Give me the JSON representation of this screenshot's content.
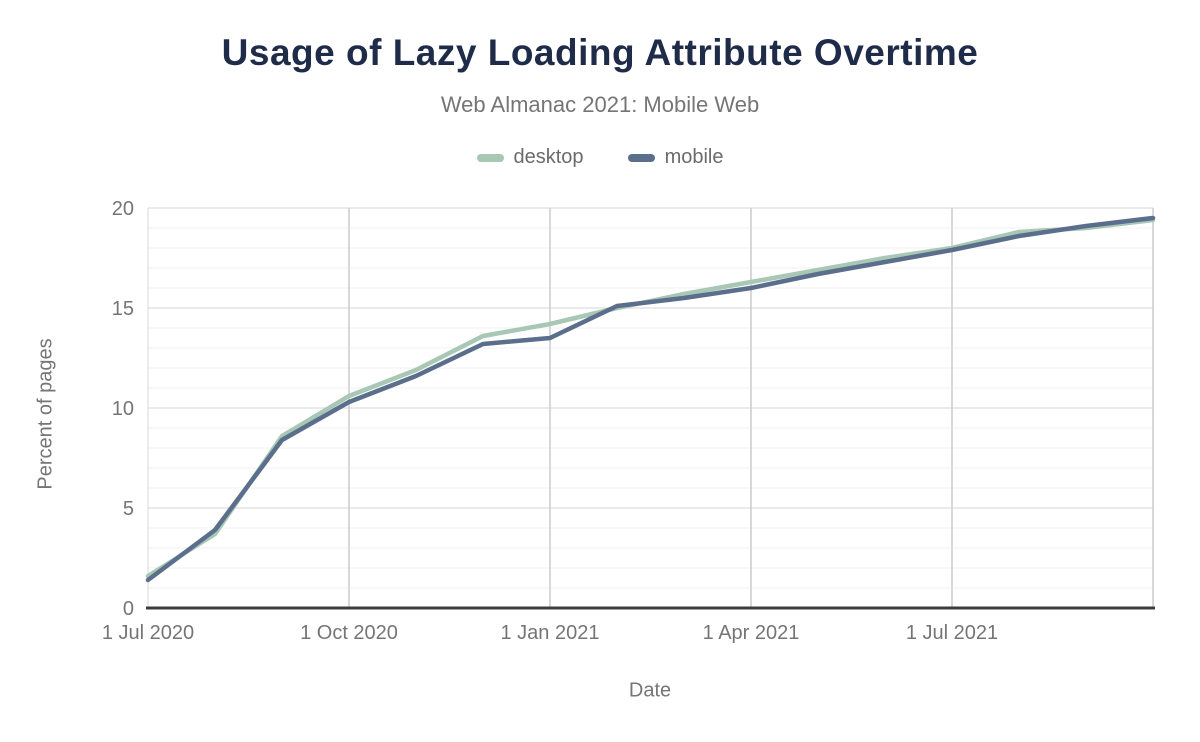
{
  "header": {
    "title": "Usage of Lazy Loading Attribute Overtime",
    "subtitle": "Web Almanac 2021: Mobile Web"
  },
  "legend": {
    "items": [
      {
        "label": "desktop",
        "color": "#a8c7b5"
      },
      {
        "label": "mobile",
        "color": "#5b6e8c"
      }
    ]
  },
  "axes": {
    "y_title": "Percent of pages",
    "x_title": "Date",
    "y_tick_labels": [
      "0",
      "5",
      "10",
      "15",
      "20"
    ],
    "y_tick_values": [
      0,
      5,
      10,
      15,
      20
    ],
    "x_tick_labels": [
      "1 Jul 2020",
      "1 Oct 2020",
      "1 Jan 2021",
      "1 Apr 2021",
      "1 Jul 2021"
    ]
  },
  "colors": {
    "title": "#1e2b49",
    "subtitle": "#757575",
    "tick_text": "#757575",
    "axis_line": "#3c3c3c",
    "y_axis_line": "#d9d9d9",
    "grid_minor": "#f0f0f0",
    "grid_major_h": "#e3e3e3",
    "grid_vertical": "#cccccc",
    "desktop": "#a8c7b5",
    "mobile": "#5b6e8c"
  },
  "chart_data": {
    "type": "line",
    "title": "Usage of Lazy Loading Attribute Overtime",
    "subtitle": "Web Almanac 2021: Mobile Web",
    "xlabel": "Date",
    "ylabel": "Percent of pages",
    "ylim": [
      0,
      20
    ],
    "y_major_step": 5,
    "y_minor_step": 1,
    "grid": "on",
    "legend_position": "top",
    "x": [
      "1 Jul 2020",
      "1 Aug 2020",
      "1 Sep 2020",
      "1 Oct 2020",
      "1 Nov 2020",
      "1 Dec 2020",
      "1 Jan 2021",
      "1 Feb 2021",
      "1 Mar 2021",
      "1 Apr 2021",
      "1 May 2021",
      "1 Jun 2021",
      "1 Jul 2021",
      "1 Aug 2021",
      "1 Sep 2021",
      "1 Oct 2021"
    ],
    "x_tick_indices": [
      0,
      3,
      6,
      9,
      12
    ],
    "x_gridline_indices": [
      3,
      6,
      9,
      12,
      15
    ],
    "series": [
      {
        "name": "desktop",
        "color": "#a8c7b5",
        "values": [
          1.6,
          3.7,
          8.6,
          10.6,
          11.9,
          13.6,
          14.2,
          15.0,
          15.7,
          16.3,
          16.9,
          17.5,
          18.0,
          18.8,
          19.0,
          19.4
        ]
      },
      {
        "name": "mobile",
        "color": "#5b6e8c",
        "values": [
          1.4,
          3.9,
          8.4,
          10.3,
          11.6,
          13.2,
          13.5,
          15.1,
          15.5,
          16.0,
          16.7,
          17.3,
          17.9,
          18.6,
          19.1,
          19.5
        ]
      }
    ]
  }
}
